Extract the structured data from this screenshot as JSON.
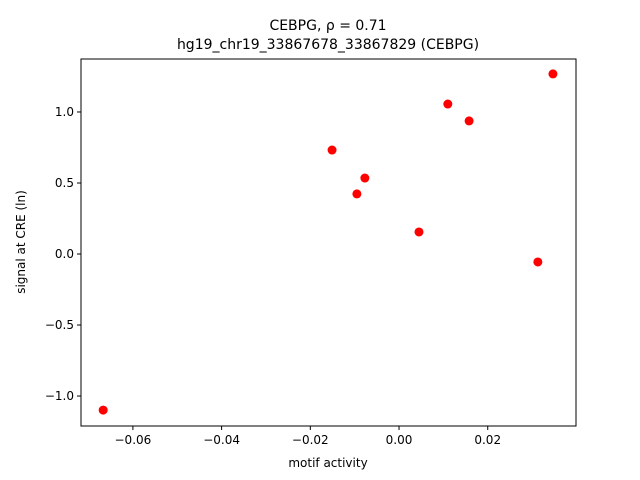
{
  "chart_data": {
    "type": "scatter",
    "title": "CEBPG, ρ = 0.71",
    "subtitle": "hg19_chr19_33867678_33867829 (CEBPG)",
    "x_label": "motif activity",
    "y_label": "signal at CRE (ln)",
    "color": "#ff0000",
    "x": [
      -0.0667,
      -0.0151,
      -0.0095,
      -0.0077,
      0.0045,
      0.011,
      0.0158,
      0.0313,
      0.0347
    ],
    "y": [
      -1.099,
      0.732,
      0.423,
      0.535,
      0.155,
      1.056,
      0.937,
      -0.056,
      1.268
    ],
    "xlim": [
      -0.0717,
      0.0399
    ],
    "ylim": [
      -1.211,
      1.373
    ],
    "xticks": [
      {
        "value": -0.06,
        "label": "−0.06"
      },
      {
        "value": -0.04,
        "label": "−0.04"
      },
      {
        "value": -0.02,
        "label": "−0.02"
      },
      {
        "value": 0,
        "label": "0.00"
      },
      0.02
    ],
    "yticks": [
      {
        "value": -1,
        "label": "−1.0"
      },
      {
        "value": -0.5,
        "label": "−0.5"
      },
      {
        "value": 0,
        "label": "0.0"
      },
      0.5,
      {
        "value": 1,
        "label": "1.0"
      }
    ],
    "grid": false
  }
}
